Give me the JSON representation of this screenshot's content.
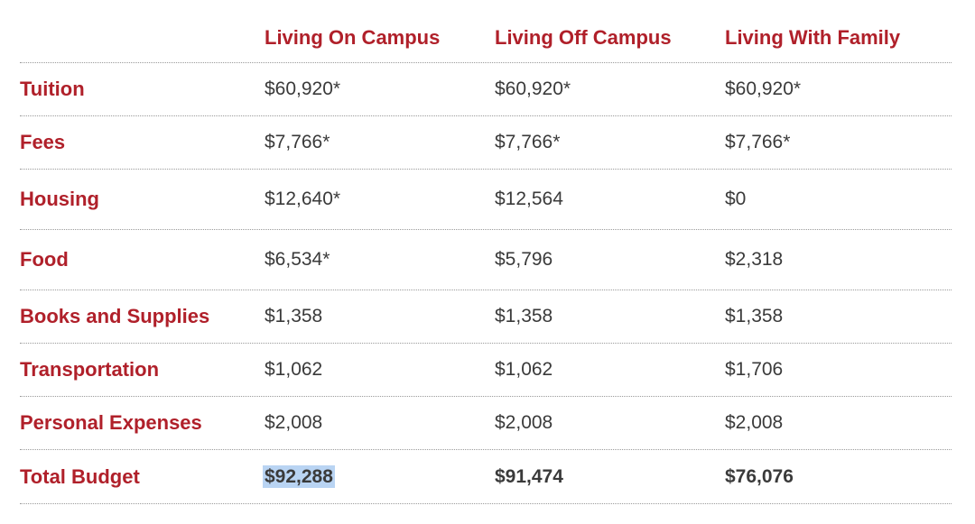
{
  "columns": [
    "Living On Campus",
    "Living Off Campus",
    "Living With Family"
  ],
  "rows": [
    {
      "label": "Tuition",
      "values": [
        "$60,920*",
        "$60,920*",
        "$60,920*"
      ]
    },
    {
      "label": "Fees",
      "values": [
        "$7,766*",
        "$7,766*",
        "$7,766*"
      ]
    },
    {
      "label": "Housing",
      "values": [
        "$12,640*",
        "$12,564",
        "$0"
      ]
    },
    {
      "label": "Food",
      "values": [
        "$6,534*",
        "$5,796",
        "$2,318"
      ]
    },
    {
      "label": "Books and Supplies",
      "values": [
        "$1,358",
        "$1,358",
        "$1,358"
      ]
    },
    {
      "label": "Transportation",
      "values": [
        "$1,062",
        "$1,062",
        "$1,706"
      ]
    },
    {
      "label": "Personal Expenses",
      "values": [
        "$2,008",
        "$2,008",
        "$2,008"
      ]
    }
  ],
  "total": {
    "label": "Total Budget",
    "values": [
      "$92,288",
      "$91,474",
      "$76,076"
    ],
    "selected_column": 0
  },
  "colors": {
    "accent": "#b0202a",
    "text": "#3a3a3a",
    "selection": "#b9d4f3"
  }
}
